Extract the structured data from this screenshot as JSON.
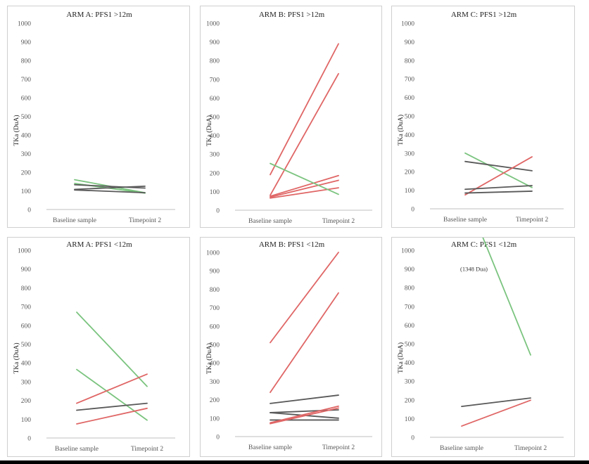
{
  "colors": {
    "black_line": "#595959",
    "red_line": "#e06666",
    "green_line": "#7bc47f",
    "axis": "#bfbfbf"
  },
  "chart_data": [
    {
      "type": "line",
      "title": "ARM A: PFS1 >12m",
      "ylabel": "TKa (DuA)",
      "ylim": [
        0,
        1000
      ],
      "yticks": [
        0,
        100,
        200,
        300,
        400,
        500,
        600,
        700,
        800,
        900,
        1000
      ],
      "categories": [
        "Baseline sample",
        "Timepoint 2"
      ],
      "series": [
        {
          "color": "green",
          "values": [
            160,
            90
          ]
        },
        {
          "color": "green",
          "values": [
            140,
            88
          ]
        },
        {
          "color": "black",
          "values": [
            133,
            115
          ]
        },
        {
          "color": "black",
          "values": [
            108,
            125
          ]
        },
        {
          "color": "black",
          "values": [
            105,
            90
          ]
        }
      ]
    },
    {
      "type": "line",
      "title": "ARM B: PFS1 >12m",
      "ylabel": "TKa (DuA)",
      "ylim": [
        0,
        1000
      ],
      "yticks": [
        0,
        100,
        200,
        300,
        400,
        500,
        600,
        700,
        800,
        900,
        1000
      ],
      "categories": [
        "Baseline sample",
        "Timepoint 2"
      ],
      "series": [
        {
          "color": "red",
          "values": [
            190,
            890
          ]
        },
        {
          "color": "red",
          "values": [
            80,
            730
          ]
        },
        {
          "color": "red",
          "values": [
            75,
            185
          ]
        },
        {
          "color": "red",
          "values": [
            70,
            160
          ]
        },
        {
          "color": "red",
          "values": [
            65,
            120
          ]
        },
        {
          "color": "green",
          "values": [
            250,
            85
          ]
        }
      ]
    },
    {
      "type": "line",
      "title": "ARM C: PFS1 >12m",
      "ylabel": "TKa (DuA)",
      "ylim": [
        0,
        1000
      ],
      "yticks": [
        0,
        100,
        200,
        300,
        400,
        500,
        600,
        700,
        800,
        900,
        1000
      ],
      "categories": [
        "Baseline sample",
        "Timepoint 2"
      ],
      "series": [
        {
          "color": "green",
          "values": [
            300,
            115
          ]
        },
        {
          "color": "black",
          "values": [
            255,
            205
          ]
        },
        {
          "color": "red",
          "values": [
            75,
            280
          ]
        },
        {
          "color": "black",
          "values": [
            105,
            125
          ]
        },
        {
          "color": "black",
          "values": [
            85,
            95
          ]
        }
      ]
    },
    {
      "type": "line",
      "title": "ARM A: PFS1 <12m",
      "ylabel": "TKa (DuA)",
      "ylim": [
        0,
        1000
      ],
      "yticks": [
        0,
        100,
        200,
        300,
        400,
        500,
        600,
        700,
        800,
        900,
        1000
      ],
      "categories": [
        "Baseline sample",
        "Timepoint 2"
      ],
      "series": [
        {
          "color": "green",
          "values": [
            670,
            275
          ]
        },
        {
          "color": "green",
          "values": [
            365,
            95
          ]
        },
        {
          "color": "red",
          "values": [
            185,
            340
          ]
        },
        {
          "color": "black",
          "values": [
            148,
            185
          ]
        },
        {
          "color": "red",
          "values": [
            75,
            158
          ]
        }
      ]
    },
    {
      "type": "line",
      "title": "ARM B: PFS1 <12m",
      "ylabel": "TKa (DuA)",
      "ylim": [
        0,
        1000
      ],
      "yticks": [
        0,
        100,
        200,
        300,
        400,
        500,
        600,
        700,
        800,
        900,
        1000
      ],
      "categories": [
        "Baseline sample",
        "Timepoint 2"
      ],
      "series": [
        {
          "color": "red",
          "values": [
            510,
            1000
          ]
        },
        {
          "color": "red",
          "values": [
            240,
            780
          ]
        },
        {
          "color": "black",
          "values": [
            180,
            225
          ]
        },
        {
          "color": "black",
          "values": [
            130,
            145
          ]
        },
        {
          "color": "black",
          "values": [
            130,
            100
          ]
        },
        {
          "color": "black",
          "values": [
            90,
            90
          ]
        },
        {
          "color": "red",
          "values": [
            75,
            165
          ]
        },
        {
          "color": "red",
          "values": [
            70,
            155
          ]
        }
      ]
    },
    {
      "type": "line",
      "title": "ARM C: PFS1 <12m",
      "ylabel": "TKa (DuA)",
      "ylim": [
        0,
        1000
      ],
      "yticks": [
        0,
        100,
        200,
        300,
        400,
        500,
        600,
        700,
        800,
        900,
        1000
      ],
      "categories": [
        "Baseline sample",
        "Timepoint 2"
      ],
      "annotation": "(1348 Dua)",
      "series": [
        {
          "color": "green",
          "values": [
            1348,
            440
          ]
        },
        {
          "color": "black",
          "values": [
            165,
            210
          ]
        },
        {
          "color": "red",
          "values": [
            60,
            198
          ]
        }
      ]
    }
  ]
}
